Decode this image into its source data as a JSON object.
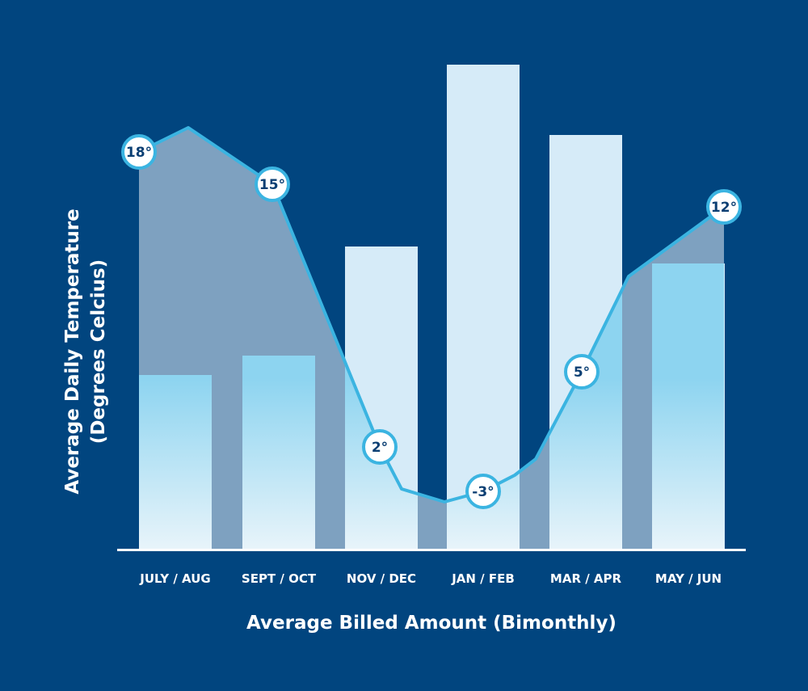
{
  "chart_data": {
    "type": "bar+line",
    "title": "",
    "xlabel": "Average Billed Amount (Bimonthly)",
    "ylabel_line1": "Average Daily Temperature",
    "ylabel_line2": "(Degrees Celcius)",
    "categories": [
      "JULY / AUG",
      "SEPT / OCT",
      "NOV / DEC",
      "JAN / FEB",
      "MAR / APR",
      "MAY / JUN"
    ],
    "bars": {
      "description_unit": "relative billed amount (no scale printed)",
      "values": [
        36,
        40,
        62.5,
        100,
        85.5,
        59
      ]
    },
    "temperature": {
      "values": [
        18,
        15,
        2,
        -3,
        5,
        12
      ],
      "labels": [
        "18°",
        "15°",
        "2°",
        "-3°",
        "5°",
        "12°"
      ]
    },
    "grid": false,
    "colors": {
      "background": "#01457f",
      "line": "#3bb4e1",
      "bar": "#d6ebf8",
      "bar_under_line": "#8dd4f0",
      "area": "#1e7db2",
      "label_text": "#0b3f73"
    }
  }
}
